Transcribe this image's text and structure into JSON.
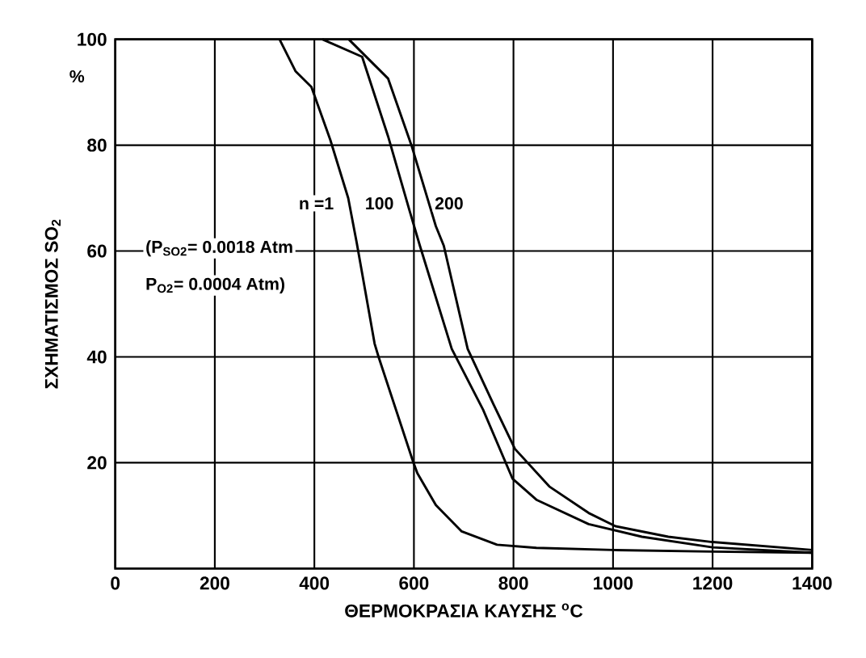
{
  "chart_data": {
    "type": "line",
    "xlabel": "ΘΕΡΜΟΚΡΑΣΙΑ ΚΑΥΣΗΣ $^{o}$C",
    "ylabel": "ΣΧΗΜΑΤΙΣΜΟΣ SO$_{2}$",
    "xlim": [
      0,
      1400
    ],
    "ylim": [
      0,
      100
    ],
    "xticks": [
      0,
      200,
      400,
      600,
      800,
      1000,
      1200,
      1400
    ],
    "yticks": [
      20,
      40,
      60,
      80,
      100
    ],
    "grid": true,
    "marker": "none",
    "line_style": "solid",
    "series": [
      {
        "color": "#000000",
        "x": [
          330,
          362,
          394,
          432,
          468,
          485,
          521,
          529,
          599,
          607,
          644,
          696,
          767,
          846,
          1000,
          1200,
          1400
        ],
        "values": [
          100,
          94,
          91,
          81,
          70,
          61.6,
          42.5,
          40,
          20,
          18,
          12,
          7,
          4.5,
          3.9,
          3.5,
          3.2,
          3
        ]
      },
      {
        "color": "#000000",
        "x": [
          416,
          496,
          548,
          591,
          612,
          676,
          739,
          798,
          846,
          951,
          1058,
          1200,
          1400
        ],
        "values": [
          100,
          96.7,
          81.7,
          67.7,
          61,
          41.5,
          30,
          17,
          13,
          8.4,
          6,
          4,
          3
        ]
      },
      {
        "color": "#000000",
        "x": [
          469,
          548,
          596,
          644,
          660,
          708,
          760,
          803,
          872,
          951,
          1005,
          1111,
          1200,
          1400
        ],
        "values": [
          100,
          92.6,
          79.7,
          64.7,
          61,
          41.5,
          31,
          22.6,
          15.5,
          10.5,
          8,
          6,
          5,
          3.5
        ]
      }
    ],
    "annotations": [
      "n =1",
      "100",
      "200",
      "%",
      "(P$_{SO2}$= 0.0018 Atm",
      "P$_{O2}$= 0.0004 Atm)"
    ]
  }
}
